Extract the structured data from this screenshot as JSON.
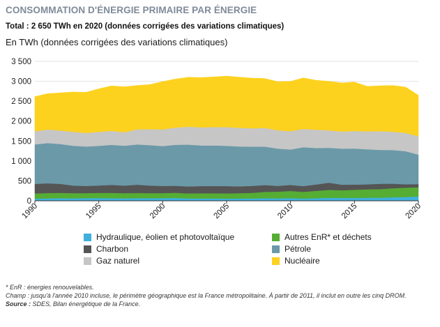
{
  "header": {
    "title": "CONSOMMATION D'ÉNERGIE PRIMAIRE PAR ÉNERGIE",
    "subtitle": "Total : 2 650 TWh en 2020 (données corrigées des variations climatiques)"
  },
  "chart_data": {
    "type": "area",
    "stacked": true,
    "ylabel": "En TWh (données corrigées des variations climatiques)",
    "xlim": [
      1990,
      2020
    ],
    "ylim": [
      0,
      3500
    ],
    "yticks": [
      0,
      500,
      1000,
      1500,
      2000,
      2500,
      3000,
      3500
    ],
    "ytick_labels": [
      "0",
      "500",
      "1 000",
      "1 500",
      "2 000",
      "2 500",
      "3 000",
      "3 500"
    ],
    "xticks": [
      1990,
      1995,
      2000,
      2005,
      2010,
      2015,
      2020
    ],
    "grid": "horizontal",
    "legend_position": "bottom",
    "x": [
      1990,
      1991,
      1992,
      1993,
      1994,
      1995,
      1996,
      1997,
      1998,
      1999,
      2000,
      2001,
      2002,
      2003,
      2004,
      2005,
      2006,
      2007,
      2008,
      2009,
      2010,
      2011,
      2012,
      2013,
      2014,
      2015,
      2016,
      2017,
      2018,
      2019,
      2020
    ],
    "series": [
      {
        "name": "Hydraulique, éolien et photovoltaïque",
        "color": "#3fb0de",
        "values": [
          55,
          60,
          65,
          62,
          68,
          70,
          65,
          62,
          65,
          68,
          68,
          72,
          60,
          60,
          60,
          55,
          58,
          60,
          65,
          60,
          68,
          55,
          65,
          75,
          75,
          72,
          78,
          78,
          90,
          95,
          110
        ]
      },
      {
        "name": "Autres EnR* et déchets",
        "color": "#55ad33",
        "values": [
          130,
          135,
          135,
          130,
          125,
          130,
          135,
          130,
          130,
          125,
          125,
          130,
          125,
          130,
          130,
          130,
          135,
          140,
          160,
          170,
          180,
          170,
          185,
          200,
          190,
          205,
          210,
          215,
          225,
          235,
          230
        ]
      },
      {
        "name": "Charbon",
        "color": "#555555",
        "values": [
          240,
          245,
          225,
          190,
          180,
          185,
          200,
          190,
          210,
          190,
          180,
          175,
          175,
          180,
          180,
          185,
          170,
          175,
          170,
          145,
          150,
          145,
          160,
          180,
          140,
          130,
          125,
          135,
          115,
          85,
          80
        ]
      },
      {
        "name": "Pétrole",
        "color": "#6b99a8",
        "values": [
          990,
          1010,
          1000,
          1000,
          990,
          995,
          1005,
          1000,
          1010,
          1015,
          1000,
          1030,
          1050,
          1020,
          1020,
          1010,
          1000,
          985,
          965,
          935,
          890,
          975,
          915,
          875,
          905,
          905,
          880,
          850,
          845,
          830,
          740
        ]
      },
      {
        "name": "Gaz naturel",
        "color": "#c6c6c6",
        "values": [
          330,
          340,
          340,
          350,
          340,
          350,
          350,
          340,
          380,
          400,
          420,
          430,
          450,
          455,
          460,
          470,
          470,
          460,
          470,
          460,
          460,
          460,
          460,
          440,
          430,
          440,
          450,
          470,
          460,
          460,
          460
        ]
      },
      {
        "name": "Nucléaire",
        "color": "#fdd21f",
        "values": [
          870,
          900,
          945,
          1000,
          1020,
          1080,
          1130,
          1140,
          1100,
          1120,
          1200,
          1220,
          1240,
          1250,
          1260,
          1280,
          1270,
          1260,
          1240,
          1220,
          1250,
          1280,
          1240,
          1230,
          1220,
          1230,
          1130,
          1140,
          1160,
          1150,
          1030
        ]
      }
    ]
  },
  "notes": {
    "enr": "* EnR : énergies renouvelables.",
    "champ": "Champ : jusqu'à l'année 2010 incluse, le périmètre géographique est la France métropolitaine. À partir de 2011, il inclut en outre les cinq DROM.",
    "source_label": "Source :",
    "source": "SDES, Bilan énergétique de la France."
  }
}
